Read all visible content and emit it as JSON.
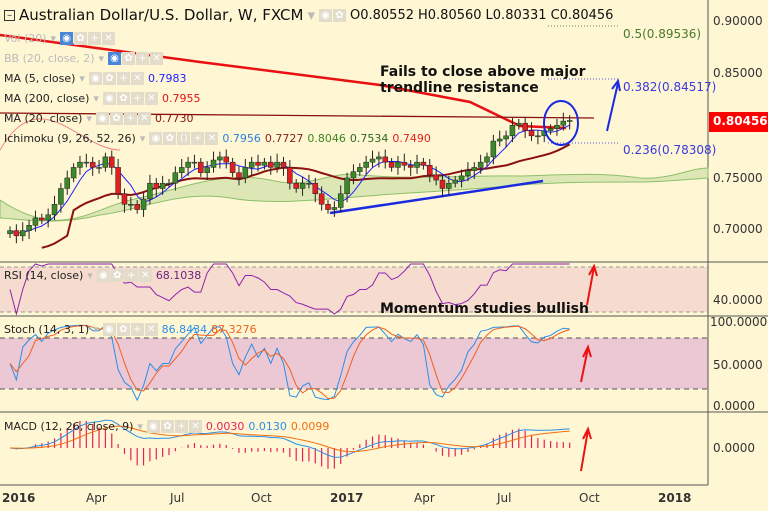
{
  "header": {
    "title": "Australian Dollar/U.S. Dollar, W, FXCM",
    "open": "O0.80552",
    "high": "H0.80560",
    "low": "L0.80331",
    "close": "C0.80456"
  },
  "indicators": {
    "vol": {
      "label": "Vol (20)"
    },
    "bb": {
      "label": "BB (20, close, 2)"
    },
    "ma5": {
      "label": "MA (5, close)",
      "value": "0.7983",
      "color": "#2020ff"
    },
    "ma200": {
      "label": "MA (200, close)",
      "value": "0.7955",
      "color": "#e81010"
    },
    "ma20": {
      "label": "MA (20, close)",
      "value": "0.7730",
      "color": "#8b1010"
    },
    "ichimoku": {
      "label": "Ichimoku (9, 26, 52, 26)",
      "values": [
        "0.7956",
        "0.7727",
        "0.8046",
        "0.7534",
        "0.7490"
      ],
      "colors": [
        "#2a7fe0",
        "#8b2020",
        "#3a8a20",
        "#2a6a20",
        "#e82020"
      ]
    },
    "rsi": {
      "label": "RSI (14, close)",
      "value": "68.1038"
    },
    "stoch": {
      "label": "Stoch (14, 3, 1)",
      "k": "86.8434",
      "d": "87.3276"
    },
    "macd": {
      "label": "MACD (12, 26, close, 9)",
      "hist": "0.0030",
      "macd": "0.0130",
      "signal": "0.0099"
    }
  },
  "fib": {
    "f05": "0.5(0.89536)",
    "f0382": "0.382(0.84517)",
    "f0236": "0.236(0.78308)"
  },
  "annotations": {
    "trendline": "Fails to close above major\ntrendline resistance",
    "momentum": "Momentum studies bullish"
  },
  "price_axis": {
    "ticks": [
      "0.90000",
      "0.85000",
      "0.75000",
      "0.70000"
    ],
    "current": "0.80456",
    "current_color": "#ff0000"
  },
  "rsi_axis": {
    "ticks": [
      "40.0000"
    ]
  },
  "stoch_axis": {
    "ticks": [
      "100.0000",
      "50.0000",
      "0.0000"
    ]
  },
  "macd_axis": {
    "ticks": [
      "0.0000"
    ]
  },
  "time_axis": {
    "ticks": [
      "2016",
      "Apr",
      "Jul",
      "Oct",
      "2017",
      "Apr",
      "Jul",
      "Oct",
      "2018"
    ]
  },
  "chart_data": {
    "type": "candlestick",
    "timeframe": "W",
    "closes": [
      0.7,
      0.695,
      0.7,
      0.705,
      0.712,
      0.71,
      0.715,
      0.725,
      0.74,
      0.75,
      0.76,
      0.765,
      0.765,
      0.76,
      0.76,
      0.77,
      0.76,
      0.735,
      0.725,
      0.725,
      0.72,
      0.73,
      0.745,
      0.74,
      0.745,
      0.745,
      0.755,
      0.76,
      0.765,
      0.765,
      0.755,
      0.76,
      0.767,
      0.77,
      0.765,
      0.755,
      0.75,
      0.76,
      0.765,
      0.762,
      0.765,
      0.76,
      0.765,
      0.76,
      0.745,
      0.74,
      0.745,
      0.745,
      0.735,
      0.725,
      0.72,
      0.722,
      0.735,
      0.75,
      0.756,
      0.76,
      0.765,
      0.768,
      0.77,
      0.765,
      0.76,
      0.765,
      0.762,
      0.76,
      0.765,
      0.762,
      0.753,
      0.748,
      0.74,
      0.745,
      0.748,
      0.752,
      0.757,
      0.76,
      0.765,
      0.77,
      0.785,
      0.787,
      0.79,
      0.8,
      0.802,
      0.795,
      0.79,
      0.79,
      0.795,
      0.797,
      0.8,
      0.804,
      0.8046
    ]
  }
}
